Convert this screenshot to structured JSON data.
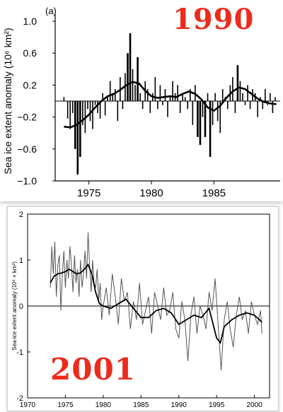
{
  "stamps": {
    "top": "1990",
    "bottom": "2001"
  },
  "accent_color": "#ee2a1c",
  "chart_data": [
    {
      "type": "bar",
      "panel_label": "(a)",
      "ylabel": "Sea ice extent anomaly (10⁶ km²)",
      "xlabel": "",
      "xlim": [
        1972.3,
        1990.3
      ],
      "ylim": [
        -1.0,
        1.0
      ],
      "x_ticks": [
        1975,
        1980,
        1985
      ],
      "x_tick_labels": [
        "1975",
        "1980",
        "1985"
      ],
      "y_ticks": [
        1.0,
        0.6,
        0.2,
        -0.2,
        -0.6,
        -1.0
      ],
      "y_tick_labels": [
        "1.0",
        "0.6",
        "0.2",
        "−0.2",
        "−0.6",
        "−1.0"
      ],
      "bars": {
        "x": [
          1973.0,
          1973.3,
          1973.5,
          1973.7,
          1973.9,
          1974.1,
          1974.3,
          1974.5,
          1974.7,
          1974.9,
          1975.1,
          1975.3,
          1975.5,
          1975.7,
          1975.9,
          1976.1,
          1976.3,
          1976.5,
          1976.7,
          1976.9,
          1977.1,
          1977.3,
          1977.5,
          1977.7,
          1977.9,
          1978.1,
          1978.3,
          1978.5,
          1978.7,
          1978.9,
          1979.1,
          1979.3,
          1979.5,
          1979.7,
          1979.9,
          1980.1,
          1980.3,
          1980.5,
          1980.7,
          1980.9,
          1981.1,
          1981.3,
          1981.5,
          1981.7,
          1981.9,
          1982.1,
          1982.3,
          1982.5,
          1982.7,
          1982.9,
          1983.1,
          1983.3,
          1983.5,
          1983.7,
          1983.9,
          1984.1,
          1984.3,
          1984.5,
          1984.7,
          1984.9,
          1985.1,
          1985.3,
          1985.5,
          1985.7,
          1985.9,
          1986.1,
          1986.3,
          1986.5,
          1986.7,
          1986.9,
          1987.1,
          1987.3,
          1987.5,
          1987.7,
          1987.9,
          1988.1,
          1988.3,
          1988.5,
          1988.7,
          1988.9,
          1989.1,
          1989.3,
          1989.5,
          1989.7,
          1989.9
        ],
        "values": [
          0.05,
          -0.22,
          -0.35,
          -0.15,
          -0.6,
          -0.92,
          -0.7,
          -0.3,
          -0.4,
          -0.1,
          -0.25,
          -0.35,
          -0.05,
          -0.15,
          -0.22,
          0.1,
          -0.18,
          0.05,
          0.25,
          0.1,
          0.15,
          -0.25,
          0.3,
          -0.1,
          0.35,
          0.6,
          0.85,
          0.4,
          0.2,
          0.55,
          0.1,
          -0.1,
          0.25,
          0.15,
          -0.15,
          0.1,
          0.3,
          -0.1,
          0.2,
          -0.05,
          0.15,
          -0.2,
          0.05,
          0.25,
          0.1,
          0.2,
          -0.15,
          0.1,
          0.05,
          -0.1,
          0.15,
          -0.3,
          0.2,
          -0.45,
          -0.55,
          -0.2,
          -0.45,
          0.1,
          -0.7,
          -0.3,
          0.1,
          -0.25,
          -0.4,
          0.15,
          0.05,
          -0.1,
          0.2,
          0.3,
          -0.15,
          0.45,
          0.25,
          0.1,
          -0.05,
          0.2,
          -0.1,
          0.15,
          0.1,
          -0.2,
          0.05,
          -0.1,
          0.15,
          -0.05,
          0.1,
          -0.15,
          0.05
        ]
      },
      "smoothed": {
        "x": [
          1973.0,
          1973.5,
          1974.0,
          1974.5,
          1975.0,
          1975.5,
          1976.0,
          1976.5,
          1977.0,
          1977.5,
          1978.0,
          1978.5,
          1979.0,
          1979.5,
          1980.0,
          1980.5,
          1981.0,
          1981.5,
          1982.0,
          1982.5,
          1983.0,
          1983.5,
          1984.0,
          1984.5,
          1985.0,
          1985.5,
          1986.0,
          1986.5,
          1987.0,
          1987.5,
          1988.0,
          1988.5,
          1989.0,
          1989.5,
          1990.0
        ],
        "values": [
          -0.32,
          -0.33,
          -0.3,
          -0.24,
          -0.17,
          -0.08,
          0.0,
          0.06,
          0.09,
          0.14,
          0.2,
          0.24,
          0.22,
          0.13,
          0.06,
          0.04,
          0.05,
          0.06,
          0.05,
          0.09,
          0.12,
          0.09,
          0.02,
          -0.08,
          -0.12,
          -0.06,
          0.04,
          0.12,
          0.17,
          0.15,
          0.09,
          0.03,
          -0.01,
          -0.03,
          -0.04
        ]
      },
      "grid": false
    },
    {
      "type": "line",
      "xlabel": "",
      "ylabel": "Sea-ice extent anomaly (10⁶ × km²)",
      "xlim": [
        1970,
        2002
      ],
      "ylim": [
        -2,
        2
      ],
      "x_ticks": [
        1970,
        1975,
        1980,
        1985,
        1990,
        1995,
        2000
      ],
      "x_tick_labels": [
        "1970",
        "1975",
        "1980",
        "1985",
        "1990",
        "1995",
        "2000"
      ],
      "y_ticks": [
        2,
        1,
        0,
        -1,
        -2
      ],
      "y_tick_labels": [
        "2",
        "1",
        "0",
        "-1",
        "-2"
      ],
      "zero_line": 0,
      "monthly": {
        "x": [
          1973.0,
          1973.2,
          1973.4,
          1973.6,
          1973.8,
          1974.0,
          1974.2,
          1974.4,
          1974.6,
          1974.8,
          1975.0,
          1975.2,
          1975.4,
          1975.6,
          1975.8,
          1976.0,
          1976.2,
          1976.4,
          1976.6,
          1976.8,
          1977.0,
          1977.2,
          1977.4,
          1977.6,
          1977.8,
          1978.0,
          1978.2,
          1978.4,
          1978.6,
          1978.8,
          1979.0,
          1979.2,
          1979.4,
          1979.6,
          1979.8,
          1980.0,
          1980.4,
          1980.8,
          1981.2,
          1981.6,
          1982.0,
          1982.4,
          1982.8,
          1983.2,
          1983.6,
          1984.0,
          1984.4,
          1984.8,
          1985.2,
          1985.6,
          1986.0,
          1986.4,
          1986.8,
          1987.2,
          1987.6,
          1988.0,
          1988.4,
          1988.8,
          1989.2,
          1989.6,
          1990.0,
          1990.4,
          1990.8,
          1991.2,
          1991.6,
          1992.0,
          1992.4,
          1992.8,
          1993.2,
          1993.6,
          1994.0,
          1994.4,
          1994.8,
          1995.2,
          1995.6,
          1996.0,
          1996.4,
          1996.8,
          1997.2,
          1997.6,
          1998.0,
          1998.4,
          1998.8,
          1999.2,
          1999.6,
          2000.0,
          2000.4,
          2000.8,
          2001.0
        ],
        "values": [
          0.4,
          1.3,
          0.7,
          1.4,
          0.2,
          0.9,
          1.1,
          -0.1,
          0.7,
          1.2,
          0.4,
          1.0,
          0.6,
          1.3,
          0.9,
          0.3,
          1.1,
          0.5,
          0.8,
          0.2,
          1.0,
          0.4,
          0.7,
          1.2,
          0.6,
          1.6,
          0.9,
          0.3,
          1.0,
          0.5,
          0.4,
          0.8,
          0.1,
          0.5,
          -0.3,
          0.0,
          0.4,
          -0.2,
          0.7,
          0.2,
          -0.4,
          0.6,
          0.1,
          0.3,
          -0.5,
          0.1,
          -0.3,
          0.5,
          -0.4,
          -0.1,
          0.2,
          -0.6,
          0.3,
          0.0,
          -0.3,
          0.4,
          -0.2,
          -0.1,
          0.3,
          -0.5,
          -0.7,
          0.1,
          -0.3,
          -1.2,
          -0.2,
          0.2,
          -0.6,
          0.0,
          -0.2,
          -0.5,
          0.3,
          -0.1,
          0.6,
          -0.4,
          -1.4,
          -0.3,
          0.1,
          -0.5,
          -0.9,
          -0.2,
          0.2,
          -0.3,
          -0.1,
          -0.6,
          0.1,
          -0.2,
          -0.4,
          -0.1,
          -0.6
        ]
      },
      "smoothed": {
        "x": [
          1973.0,
          1973.5,
          1974.0,
          1974.5,
          1975.0,
          1975.5,
          1976.0,
          1976.5,
          1977.0,
          1977.5,
          1978.0,
          1978.5,
          1979.0,
          1979.5,
          1980.0,
          1981.0,
          1982.0,
          1983.0,
          1984.0,
          1985.0,
          1986.0,
          1987.0,
          1988.0,
          1989.0,
          1990.0,
          1991.0,
          1992.0,
          1993.0,
          1994.0,
          1995.0,
          1995.5,
          1996.0,
          1997.0,
          1998.0,
          1999.0,
          2000.0,
          2001.0
        ],
        "values": [
          0.5,
          0.65,
          0.7,
          0.72,
          0.75,
          0.8,
          0.75,
          0.7,
          0.72,
          0.8,
          0.9,
          0.7,
          0.3,
          0.05,
          0.0,
          -0.05,
          0.05,
          0.15,
          -0.05,
          -0.25,
          -0.25,
          -0.1,
          -0.05,
          -0.15,
          -0.4,
          -0.3,
          -0.2,
          -0.25,
          -0.05,
          -0.7,
          -0.8,
          -0.45,
          -0.3,
          -0.2,
          -0.15,
          -0.2,
          -0.35
        ]
      },
      "grid": false
    }
  ]
}
